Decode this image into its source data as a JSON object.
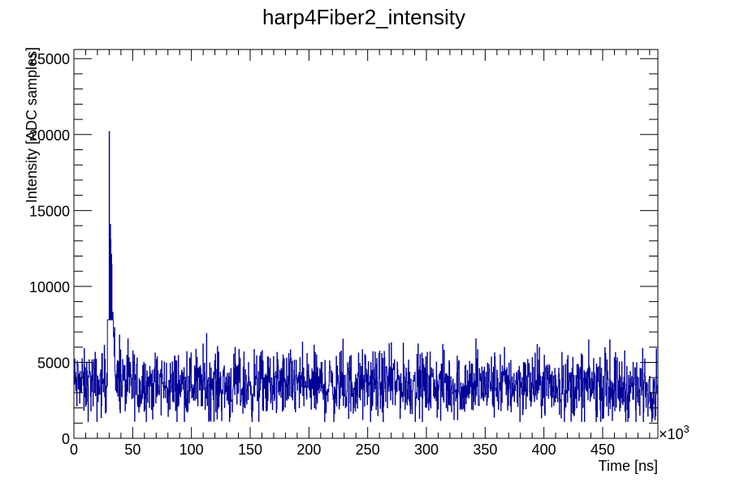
{
  "chart_data": {
    "type": "line",
    "style": "histogram",
    "title": "harp4Fiber2_intensity",
    "xlabel": "Time [ns]",
    "ylabel": "Intensity [ADC samples]",
    "x_exponent_label": "×10",
    "x_exponent_power": "3",
    "xlim": [
      0,
      497
    ],
    "ylim": [
      0,
      25600
    ],
    "x_ticks": [
      0,
      50,
      100,
      150,
      200,
      250,
      300,
      350,
      400,
      450
    ],
    "x_tick_labels": [
      "0",
      "50",
      "100",
      "150",
      "200",
      "250",
      "300",
      "350",
      "400",
      "450"
    ],
    "y_ticks": [
      0,
      5000,
      10000,
      15000,
      20000,
      25000
    ],
    "y_tick_labels": [
      "0",
      "5000",
      "10000",
      "15000",
      "20000",
      "25000"
    ],
    "grid": false,
    "line_color": "#000099",
    "series": [
      {
        "x": [
          0,
          5,
          10,
          15,
          20,
          25,
          28,
          30,
          31,
          32,
          33,
          35,
          40,
          45,
          50,
          55,
          60,
          70,
          80,
          90,
          100,
          120,
          140,
          160,
          180,
          200,
          220,
          250,
          280,
          300,
          330,
          350,
          380,
          400,
          430,
          450,
          480,
          497
        ],
        "values": [
          3500,
          3600,
          3400,
          3700,
          3300,
          3800,
          3900,
          20200,
          13400,
          11800,
          8300,
          4200,
          3700,
          3500,
          3600,
          3400,
          3600,
          3500,
          3400,
          3500,
          3600,
          3500,
          3400,
          3500,
          3600,
          3500,
          3400,
          3500,
          3600,
          3500,
          3400,
          3500,
          3600,
          3500,
          3400,
          3500,
          3300,
          3400
        ]
      }
    ]
  }
}
